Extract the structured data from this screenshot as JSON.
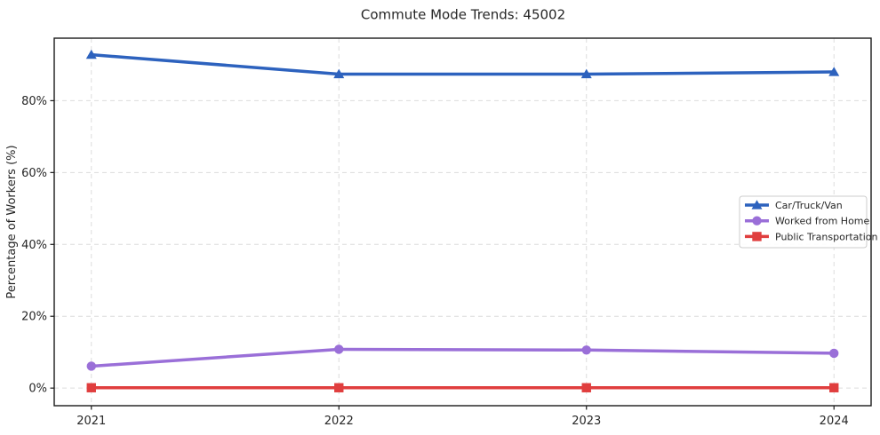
{
  "chart_data": {
    "type": "line",
    "title": "Commute Mode Trends: 45002",
    "xlabel": "",
    "ylabel": "Percentage of Workers (%)",
    "categories": [
      "2021",
      "2022",
      "2023",
      "2024"
    ],
    "series": [
      {
        "name": "Car/Truck/Van",
        "color": "#2d62be",
        "marker": "triangle",
        "values": [
          92.8,
          87.4,
          87.4,
          88.0
        ]
      },
      {
        "name": "Worked from Home",
        "color": "#9a6fd8",
        "marker": "circle",
        "values": [
          6.1,
          10.8,
          10.6,
          9.7
        ]
      },
      {
        "name": "Public Transportation",
        "color": "#e03e3e",
        "marker": "square",
        "values": [
          0.1,
          0.1,
          0.1,
          0.1
        ]
      }
    ],
    "yticks": [
      0,
      20,
      40,
      60,
      80
    ],
    "ytick_suffix": "%",
    "ylim": [
      -4.9,
      97.4
    ],
    "xlim": [
      2020.85,
      2024.15
    ],
    "grid": true,
    "grid_color": "#dcdcdc",
    "spine_color": "#1a1a1a",
    "legend_position": "right-middle",
    "legend_border_color": "#cccccc"
  }
}
